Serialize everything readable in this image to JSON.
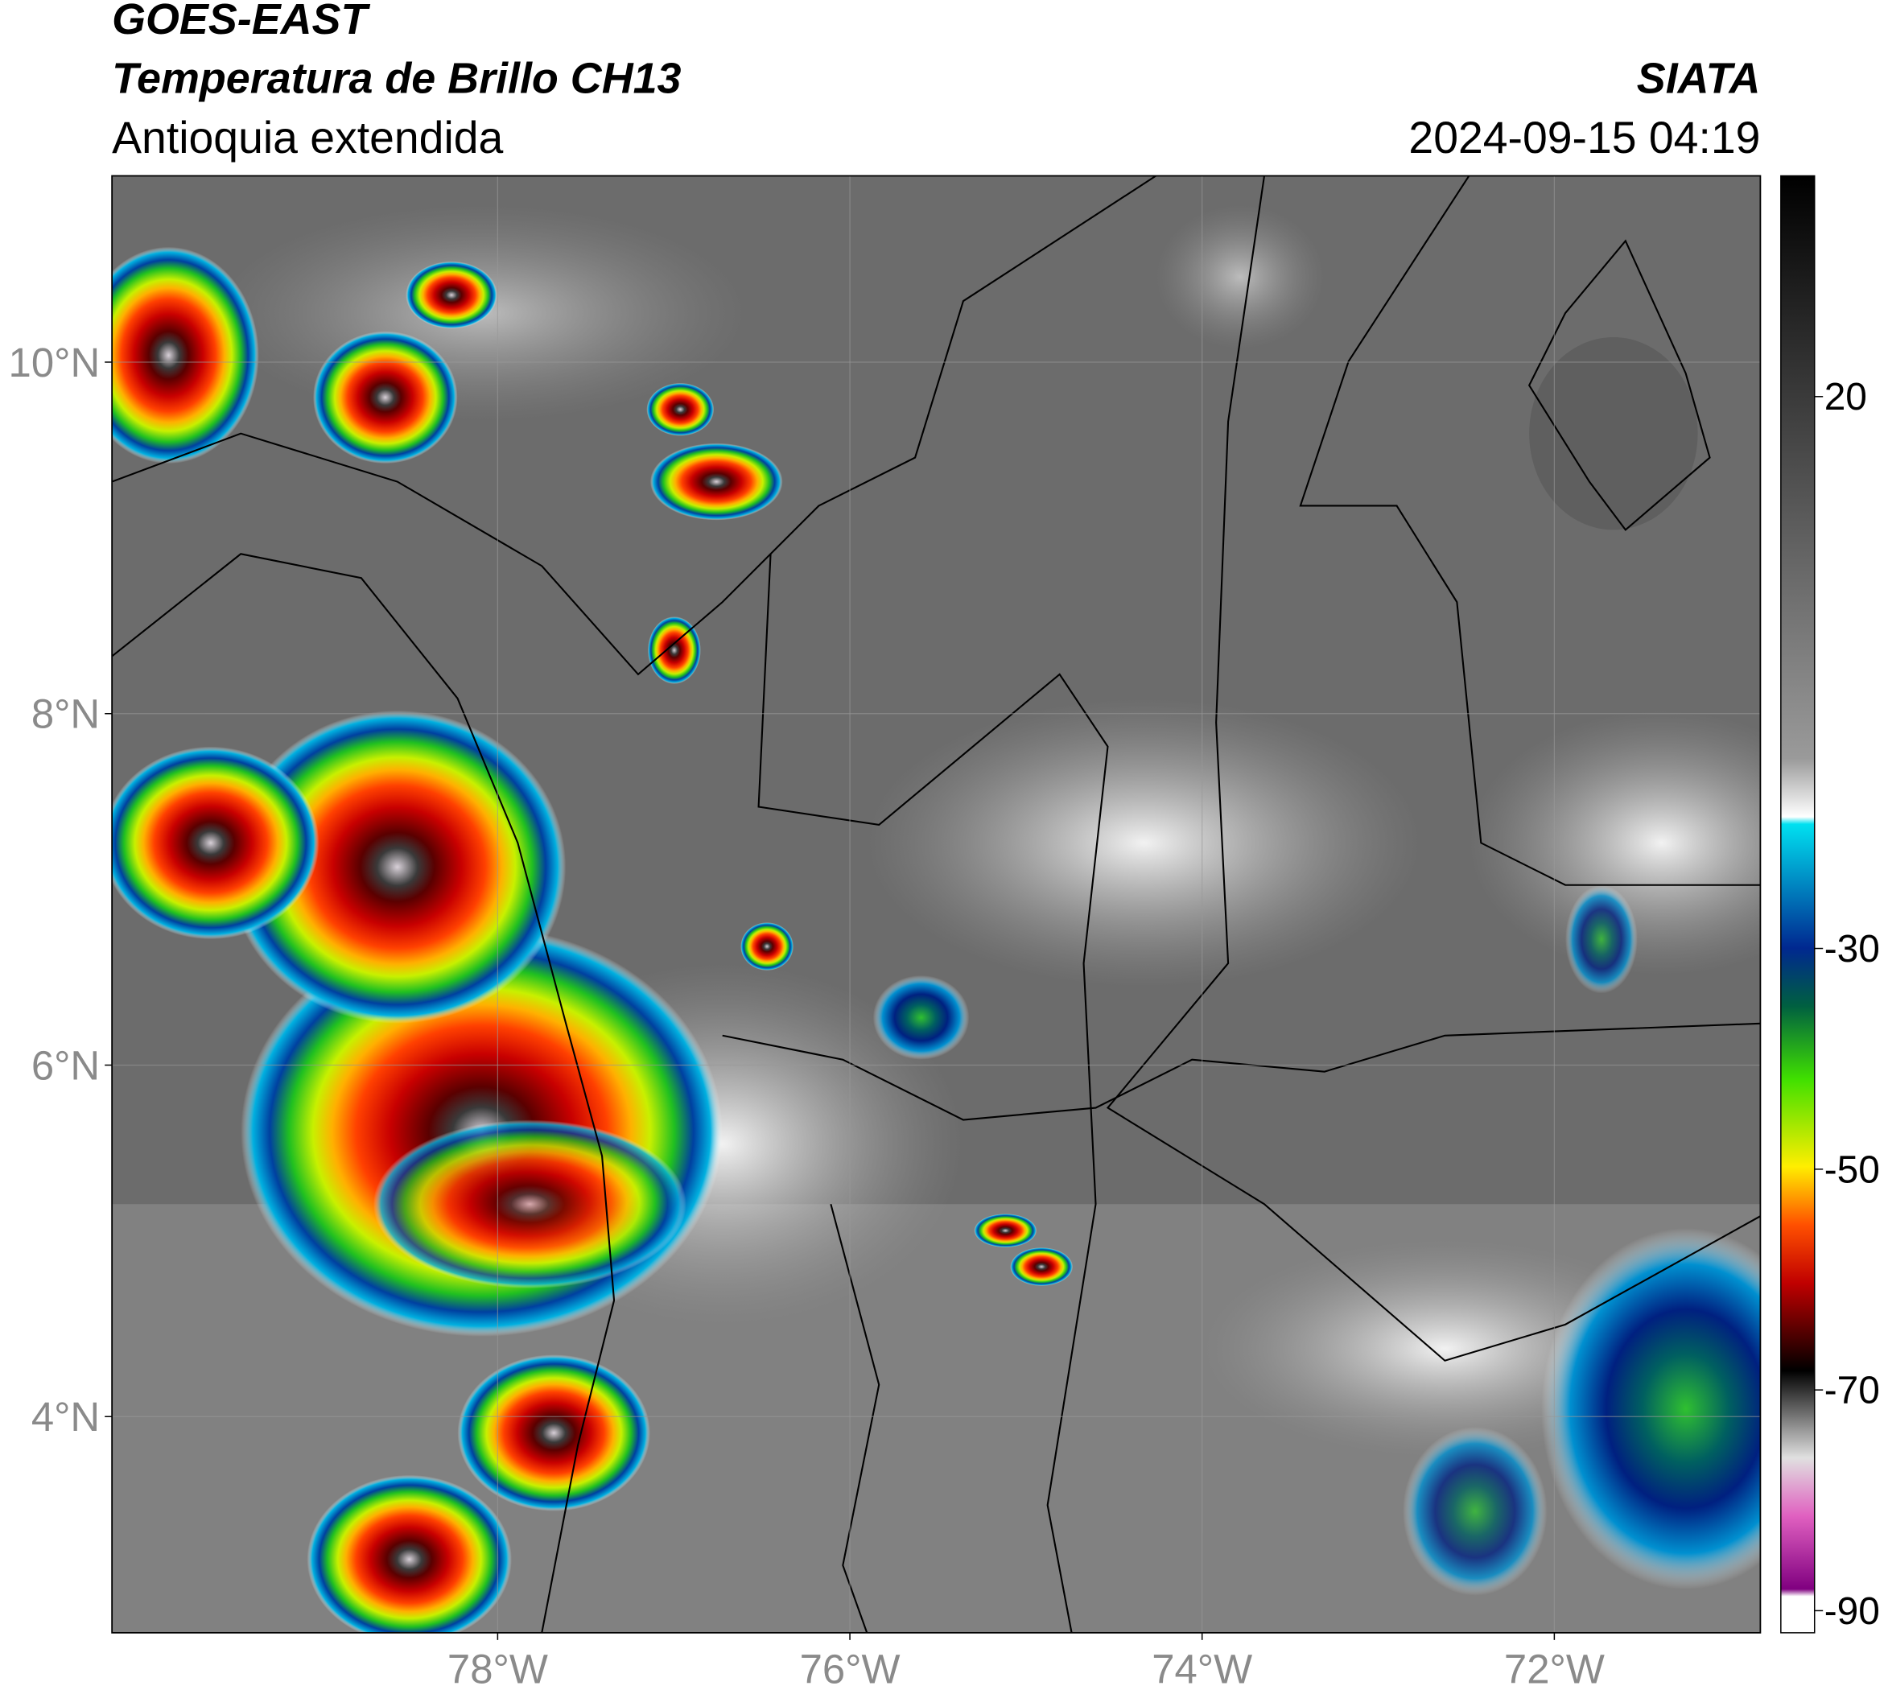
{
  "header": {
    "title": "GOES-EAST",
    "subtitle": "Temperatura de Brillo CH13",
    "region": "Antioquia extendida",
    "source": "SIATA",
    "datetime": "2024-09-15 04:19"
  },
  "chart_data": {
    "type": "map",
    "xlim": [
      -80.19,
      -70.83
    ],
    "ylim": [
      2.77,
      11.06
    ],
    "xticks": [
      {
        "value": -78,
        "label": "78°W"
      },
      {
        "value": -76,
        "label": "76°W"
      },
      {
        "value": -74,
        "label": "74°W"
      },
      {
        "value": -72,
        "label": "72°W"
      }
    ],
    "yticks": [
      {
        "value": 4,
        "label": "4°N"
      },
      {
        "value": 6,
        "label": "6°N"
      },
      {
        "value": 8,
        "label": "8°N"
      },
      {
        "value": 10,
        "label": "10°N"
      }
    ],
    "grid": true,
    "colorbar": {
      "lim": [
        -92,
        40
      ],
      "ticks": [
        20,
        -30,
        -50,
        -70,
        -90
      ]
    }
  }
}
